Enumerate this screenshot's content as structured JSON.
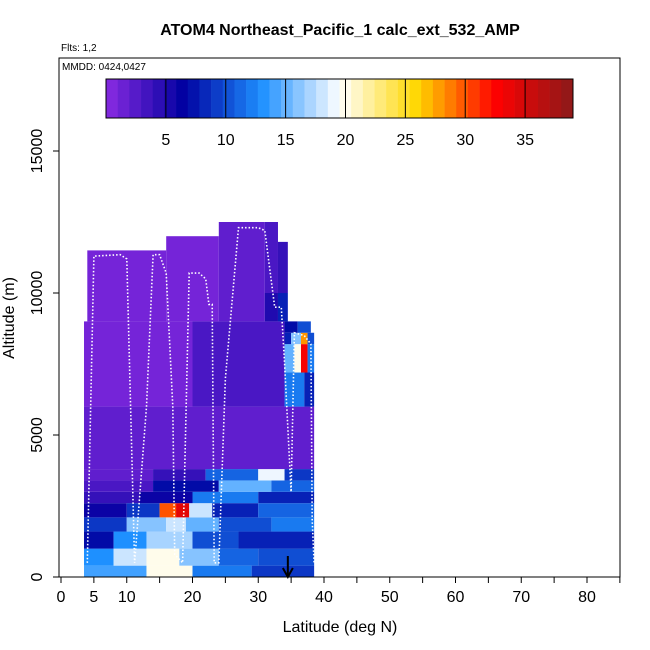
{
  "chart_data": {
    "type": "heatmap",
    "title": "ATOM4 Northeast_Pacific_1 calc_ext_532_AMP",
    "flights_label": "Flts: 1,2",
    "dates_label": "MMDD: 0424,0427",
    "xlabel": "Latitude (deg N)",
    "ylabel": "Altitude (m)",
    "xlim": [
      0,
      85
    ],
    "ylim": [
      0,
      17500
    ],
    "x_ticks": [
      0,
      5,
      10,
      20,
      30,
      40,
      50,
      60,
      70,
      80
    ],
    "x_tick_labels": [
      "0",
      "5",
      "10",
      "20",
      "30",
      "40",
      "50",
      "60",
      "70",
      "80"
    ],
    "x_minor_ticks": [
      15,
      25,
      35,
      45,
      55,
      65,
      75,
      85
    ],
    "y_ticks": [
      0,
      5000,
      10000,
      15000
    ],
    "y_tick_labels": [
      "0",
      "5000",
      "10000",
      "15000"
    ],
    "colorbar": {
      "range": [
        0,
        39
      ],
      "ticks": [
        5,
        10,
        15,
        20,
        25,
        30,
        35
      ],
      "tick_labels": [
        "5",
        "10",
        "15",
        "20",
        "25",
        "30",
        "35"
      ],
      "colors": [
        "#8a2be2",
        "#0000a0",
        "#1e90ff",
        "#ffffff",
        "#ffd700",
        "#ff0000",
        "#8b1a1a"
      ]
    },
    "grid": false,
    "arrow_x": 34.5,
    "flight_track_color": "#ffffff",
    "cells_note": "cells: [lat_start, lat_end, alt_bottom, alt_top, value]",
    "cells": [
      [
        3.5,
        13,
        0,
        400,
        14
      ],
      [
        13,
        20,
        0,
        400,
        20
      ],
      [
        20,
        29,
        0,
        400,
        12
      ],
      [
        29,
        38.5,
        0,
        400,
        9
      ],
      [
        3.5,
        8,
        400,
        1000,
        13
      ],
      [
        8,
        13,
        400,
        1000,
        18
      ],
      [
        13,
        18,
        400,
        1000,
        20
      ],
      [
        18,
        24,
        400,
        1000,
        16
      ],
      [
        24,
        30,
        400,
        1000,
        11
      ],
      [
        30,
        38.5,
        400,
        1000,
        10
      ],
      [
        3.5,
        8,
        1000,
        1600,
        7
      ],
      [
        8,
        13,
        1000,
        1600,
        13
      ],
      [
        13,
        20,
        1000,
        1600,
        17
      ],
      [
        20,
        27,
        1000,
        1600,
        10
      ],
      [
        27,
        38.5,
        1000,
        1600,
        8
      ],
      [
        3.5,
        10,
        1600,
        2100,
        9
      ],
      [
        10,
        16,
        1600,
        2100,
        16
      ],
      [
        16,
        19,
        1600,
        2100,
        18
      ],
      [
        19,
        24,
        1600,
        2100,
        15
      ],
      [
        24,
        32,
        1600,
        2100,
        10
      ],
      [
        32,
        38.5,
        1600,
        2100,
        12
      ],
      [
        3.5,
        10,
        2100,
        2600,
        6
      ],
      [
        10,
        15,
        2100,
        2600,
        9
      ],
      [
        15,
        17.5,
        2100,
        2600,
        30
      ],
      [
        17.5,
        19.5,
        2100,
        2600,
        34
      ],
      [
        19.5,
        23,
        2100,
        2600,
        18
      ],
      [
        23,
        30,
        2100,
        2600,
        8
      ],
      [
        30,
        38.5,
        2100,
        2600,
        11
      ],
      [
        3.5,
        12,
        2600,
        3000,
        4
      ],
      [
        12,
        20,
        2600,
        3000,
        6
      ],
      [
        20,
        30,
        2600,
        3000,
        12
      ],
      [
        30,
        38.5,
        2600,
        3000,
        8
      ],
      [
        3.5,
        14,
        3000,
        3400,
        3
      ],
      [
        14,
        24,
        3000,
        3400,
        7
      ],
      [
        24,
        32,
        3000,
        3400,
        15
      ],
      [
        32,
        38.5,
        3000,
        3400,
        11
      ],
      [
        3.5,
        14,
        3400,
        3800,
        2
      ],
      [
        14,
        22,
        3400,
        3800,
        4
      ],
      [
        22,
        30,
        3400,
        3800,
        11
      ],
      [
        30,
        34,
        3400,
        3800,
        19
      ],
      [
        34,
        38.5,
        3400,
        3800,
        9
      ],
      [
        3.5,
        38.5,
        3800,
        6000,
        2
      ],
      [
        3.5,
        20,
        6000,
        9000,
        1
      ],
      [
        20,
        34,
        6000,
        9000,
        3
      ],
      [
        34,
        37,
        6000,
        7200,
        12
      ],
      [
        37,
        38.5,
        6000,
        7200,
        8
      ],
      [
        34,
        35.5,
        7200,
        8200,
        15
      ],
      [
        35.5,
        36.5,
        7200,
        8200,
        20
      ],
      [
        36.5,
        37.5,
        7200,
        8200,
        33
      ],
      [
        37.5,
        38.5,
        7200,
        8200,
        12
      ],
      [
        34,
        35,
        8200,
        8600,
        8
      ],
      [
        35,
        36.5,
        8200,
        8600,
        16
      ],
      [
        36.5,
        37.5,
        8200,
        8600,
        28
      ],
      [
        37.5,
        38.5,
        8200,
        8600,
        10
      ],
      [
        34,
        36,
        8600,
        9000,
        7
      ],
      [
        36,
        38,
        8600,
        9000,
        10
      ],
      [
        4,
        16,
        9000,
        11500,
        1
      ],
      [
        16,
        24,
        9000,
        12000,
        1
      ],
      [
        24,
        31,
        9000,
        12500,
        2
      ],
      [
        31,
        33,
        9000,
        10000,
        5
      ],
      [
        33,
        34.5,
        9000,
        10000,
        8
      ],
      [
        31,
        33,
        10000,
        12500,
        3
      ],
      [
        33,
        34.5,
        10000,
        11800,
        4
      ]
    ],
    "track_note": "track: [lat, altitude] polyline of flight path",
    "track": [
      [
        4,
        500
      ],
      [
        5,
        11300
      ],
      [
        9,
        11350
      ],
      [
        10,
        11200
      ],
      [
        11.2,
        500
      ],
      [
        13,
        6000
      ],
      [
        14,
        11350
      ],
      [
        15,
        11350
      ],
      [
        16,
        10700
      ],
      [
        17,
        6000
      ],
      [
        17.3,
        800
      ],
      [
        18.5,
        500
      ],
      [
        19.5,
        10700
      ],
      [
        21,
        10700
      ],
      [
        22,
        10500
      ],
      [
        22.5,
        9600
      ],
      [
        23,
        9600
      ],
      [
        23.3,
        500
      ],
      [
        24,
        500
      ],
      [
        25,
        7000
      ],
      [
        27,
        12300
      ],
      [
        30,
        12300
      ],
      [
        31,
        12200
      ],
      [
        32.5,
        9500
      ],
      [
        33.5,
        9500
      ],
      [
        34,
        7500
      ],
      [
        35,
        3000
      ],
      [
        35.5,
        8600
      ],
      [
        37,
        8500
      ],
      [
        38,
        8200
      ],
      [
        38.2,
        2000
      ],
      [
        38.5,
        500
      ]
    ]
  }
}
